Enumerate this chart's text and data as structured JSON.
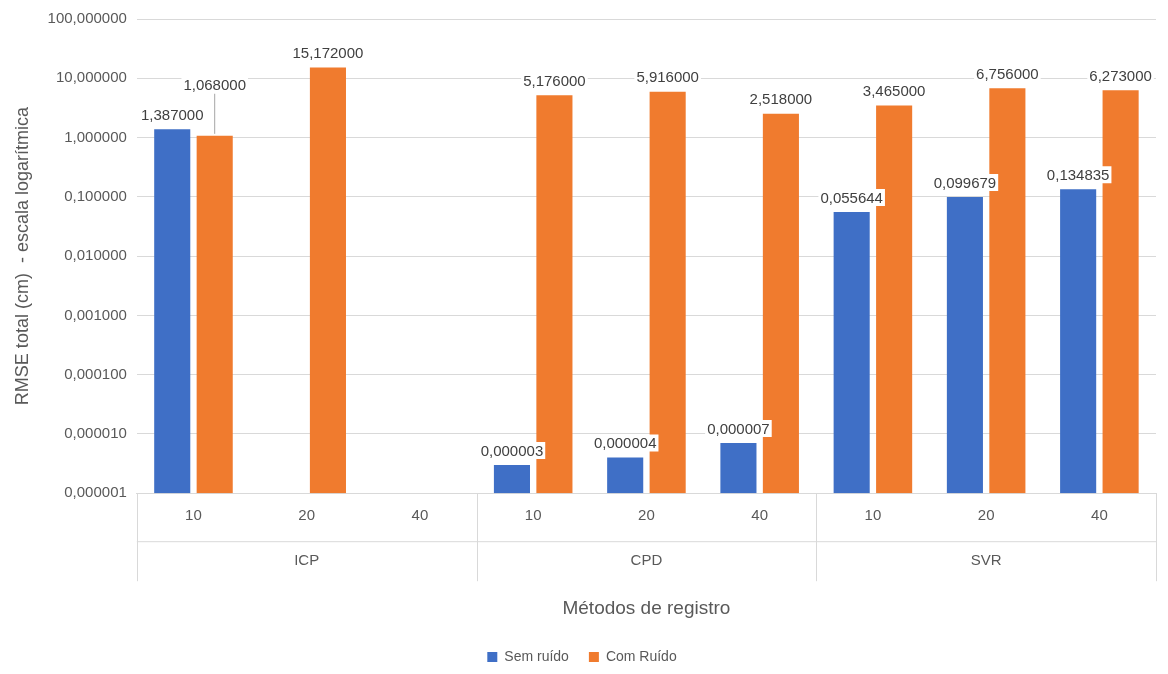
{
  "chart_data": {
    "type": "bar",
    "categories": [
      "10",
      "20",
      "40",
      "10",
      "20",
      "40",
      "10",
      "20",
      "40"
    ],
    "annotations": [
      "ICP",
      "CPD",
      "SVR"
    ],
    "xlabel": "Métodos de registro",
    "ylabel": "RMSE total (cm)  - escala logarítmica",
    "series": [
      {
        "name": "Sem ruído",
        "color": "#3f6fc6",
        "values": [
          1.387,
          null,
          null,
          3e-06,
          4e-06,
          7e-06,
          0.055644,
          0.099679,
          0.134835
        ],
        "value_labels": [
          "1,387000",
          null,
          null,
          "0,000003",
          "0,000004",
          "0,000007",
          "0,055644",
          "0,099679",
          "0,134835"
        ]
      },
      {
        "name": "Com Ruído",
        "color": "#f07b2e",
        "values": [
          1.068,
          15.172,
          null,
          5.176,
          5.916,
          2.518,
          3.465,
          6.756,
          6.273
        ],
        "value_labels": [
          "1,068000",
          "15,172000",
          null,
          "5,176000",
          "5,916000",
          "2,518000",
          "3,465000",
          "6,756000",
          "6,273000"
        ]
      }
    ],
    "log": "y",
    "ylim": [
      1e-06,
      100
    ],
    "yticks": [
      {
        "value": 1e-06,
        "label": "0,000001"
      },
      {
        "value": 1e-05,
        "label": "0,000010"
      },
      {
        "value": 0.0001,
        "label": "0,000100"
      },
      {
        "value": 0.001,
        "label": "0,001000"
      },
      {
        "value": 0.01,
        "label": "0,010000"
      },
      {
        "value": 0.1,
        "label": "0,100000"
      },
      {
        "value": 1,
        "label": "1,000000"
      },
      {
        "value": 10,
        "label": "10,000000"
      },
      {
        "value": 100,
        "label": "100,000000"
      }
    ],
    "grid": "y",
    "legend": "bottom"
  }
}
